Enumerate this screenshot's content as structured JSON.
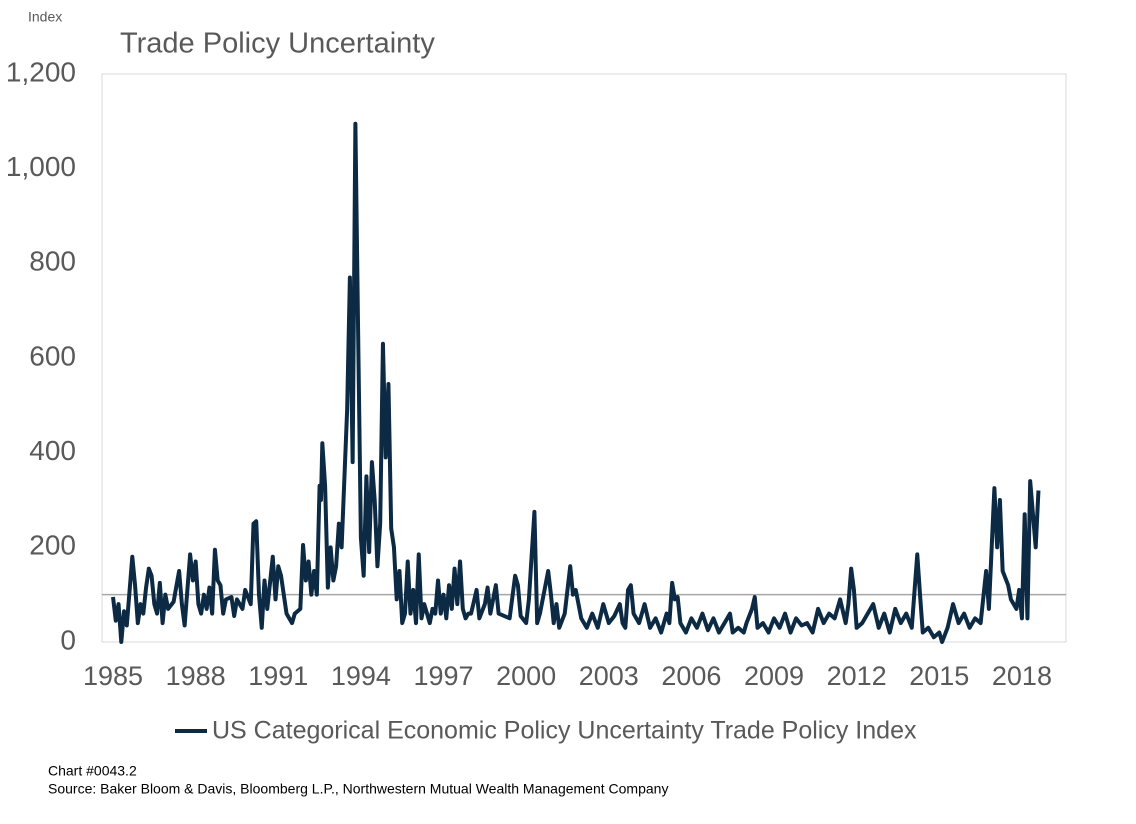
{
  "chart_data": {
    "type": "line",
    "y_unit_label": "Index",
    "title": "Trade Policy Uncertainty",
    "note": "Chart #0043.2",
    "source": "Source: Baker Bloom & Davis, Bloomberg L.P., Northwestern  Mutual Wealth Management  Company",
    "xlim": [
      1984.6,
      2019.6
    ],
    "xticks": [
      1985,
      1988,
      1991,
      1994,
      1997,
      2000,
      2003,
      2006,
      2009,
      2012,
      2015,
      2018
    ],
    "ylim": [
      0,
      1200
    ],
    "yticks": [
      0,
      200,
      400,
      600,
      800,
      {
        "value": 1000,
        "label": "1,000"
      },
      {
        "value": 1200,
        "label": "1,200"
      }
    ],
    "reference_line": 100,
    "reference_color": "#a6a6a6",
    "x": [
      1985.0,
      1985.1,
      1985.2,
      1985.3,
      1985.4,
      1985.5,
      1985.7,
      1985.8,
      1985.9,
      1986.0,
      1986.1,
      1986.2,
      1986.3,
      1986.4,
      1986.5,
      1986.6,
      1986.7,
      1986.8,
      1986.9,
      1987.0,
      1987.2,
      1987.4,
      1987.5,
      1987.6,
      1987.8,
      1987.9,
      1988.0,
      1988.1,
      1988.2,
      1988.3,
      1988.4,
      1988.5,
      1988.6,
      1988.7,
      1988.8,
      1988.9,
      1989.0,
      1989.1,
      1989.3,
      1989.4,
      1989.5,
      1989.7,
      1989.8,
      1990.0,
      1990.1,
      1990.2,
      1990.3,
      1990.4,
      1990.5,
      1990.6,
      1990.8,
      1990.9,
      1991.0,
      1991.1,
      1991.2,
      1991.3,
      1991.5,
      1991.6,
      1991.8,
      1991.9,
      1992.0,
      1992.1,
      1992.2,
      1992.3,
      1992.4,
      1992.5,
      1992.55,
      1992.6,
      1992.7,
      1992.8,
      1992.9,
      1993.0,
      1993.1,
      1993.2,
      1993.3,
      1993.5,
      1993.6,
      1993.7,
      1993.8,
      1993.9,
      1994.0,
      1994.1,
      1994.2,
      1994.3,
      1994.4,
      1994.5,
      1994.6,
      1994.7,
      1994.8,
      1994.9,
      1995.0,
      1995.1,
      1995.2,
      1995.3,
      1995.4,
      1995.5,
      1995.6,
      1995.7,
      1995.8,
      1995.9,
      1996.0,
      1996.1,
      1996.2,
      1996.3,
      1996.4,
      1996.5,
      1996.6,
      1996.7,
      1996.8,
      1996.9,
      1997.0,
      1997.1,
      1997.2,
      1997.3,
      1997.4,
      1997.5,
      1997.6,
      1997.7,
      1997.8,
      1997.9,
      1998.0,
      1998.2,
      1998.3,
      1998.5,
      1998.6,
      1998.7,
      1998.9,
      1999.0,
      1999.2,
      1999.4,
      1999.6,
      1999.7,
      1999.8,
      2000.0,
      2000.1,
      2000.3,
      2000.4,
      2000.5,
      2000.7,
      2000.8,
      2000.9,
      2001.0,
      2001.1,
      2001.2,
      2001.4,
      2001.6,
      2001.7,
      2001.8,
      2002.0,
      2002.2,
      2002.4,
      2002.6,
      2002.8,
      2003.0,
      2003.2,
      2003.4,
      2003.5,
      2003.6,
      2003.7,
      2003.8,
      2003.9,
      2004.1,
      2004.3,
      2004.5,
      2004.7,
      2004.9,
      2005.1,
      2005.2,
      2005.3,
      2005.4,
      2005.5,
      2005.6,
      2005.8,
      2006.0,
      2006.2,
      2006.4,
      2006.6,
      2006.8,
      2007.0,
      2007.2,
      2007.4,
      2007.5,
      2007.7,
      2007.9,
      2008.0,
      2008.2,
      2008.3,
      2008.4,
      2008.6,
      2008.8,
      2009.0,
      2009.2,
      2009.4,
      2009.6,
      2009.8,
      2010.0,
      2010.2,
      2010.4,
      2010.6,
      2010.8,
      2011.0,
      2011.2,
      2011.4,
      2011.6,
      2011.7,
      2011.8,
      2011.9,
      2012.0,
      2012.2,
      2012.4,
      2012.6,
      2012.8,
      2013.0,
      2013.2,
      2013.4,
      2013.6,
      2013.8,
      2014.0,
      2014.2,
      2014.3,
      2014.4,
      2014.6,
      2014.8,
      2015.0,
      2015.1,
      2015.3,
      2015.5,
      2015.7,
      2015.9,
      2016.1,
      2016.3,
      2016.5,
      2016.7,
      2016.8,
      2017.0,
      2017.1,
      2017.2,
      2017.3,
      2017.5,
      2017.6,
      2017.8,
      2017.9,
      2018.0,
      2018.1,
      2018.2,
      2018.3,
      2018.5,
      2018.6
    ],
    "series": [
      {
        "name": "US Categorical Economic Policy Uncertainty Trade Policy Index",
        "color": "#0c2a44",
        "values": [
          95,
          45,
          80,
          0,
          65,
          35,
          180,
          120,
          40,
          80,
          60,
          115,
          155,
          140,
          80,
          60,
          125,
          40,
          100,
          70,
          85,
          150,
          80,
          35,
          185,
          130,
          170,
          80,
          60,
          100,
          70,
          115,
          60,
          195,
          130,
          120,
          60,
          90,
          95,
          55,
          90,
          70,
          110,
          80,
          250,
          255,
          100,
          30,
          130,
          70,
          180,
          90,
          160,
          140,
          100,
          60,
          40,
          60,
          70,
          205,
          130,
          170,
          100,
          150,
          100,
          330,
          300,
          420,
          330,
          115,
          200,
          130,
          160,
          250,
          200,
          490,
          770,
          380,
          1095,
          650,
          220,
          140,
          350,
          190,
          380,
          300,
          160,
          250,
          630,
          390,
          545,
          240,
          200,
          90,
          150,
          40,
          60,
          170,
          60,
          110,
          40,
          185,
          50,
          80,
          60,
          40,
          70,
          60,
          130,
          60,
          100,
          50,
          120,
          70,
          155,
          80,
          170,
          70,
          50,
          60,
          60,
          110,
          50,
          80,
          115,
          60,
          120,
          60,
          55,
          50,
          140,
          120,
          55,
          40,
          90,
          275,
          40,
          60,
          120,
          150,
          100,
          40,
          80,
          30,
          60,
          160,
          100,
          110,
          50,
          30,
          60,
          30,
          80,
          40,
          55,
          80,
          40,
          30,
          110,
          120,
          60,
          40,
          80,
          30,
          50,
          20,
          60,
          40,
          125,
          90,
          95,
          40,
          20,
          50,
          30,
          60,
          25,
          50,
          20,
          40,
          60,
          20,
          30,
          20,
          40,
          70,
          95,
          30,
          40,
          20,
          50,
          30,
          60,
          20,
          50,
          35,
          40,
          20,
          70,
          40,
          60,
          50,
          90,
          40,
          80,
          155,
          110,
          30,
          40,
          60,
          80,
          30,
          60,
          20,
          70,
          40,
          60,
          30,
          185,
          100,
          20,
          30,
          10,
          20,
          0,
          30,
          80,
          40,
          60,
          30,
          50,
          40,
          150,
          70,
          325,
          200,
          300,
          150,
          120,
          90,
          70,
          110,
          50,
          270,
          50,
          340,
          200,
          320
        ]
      }
    ],
    "legend": "bottom",
    "grid": false
  }
}
